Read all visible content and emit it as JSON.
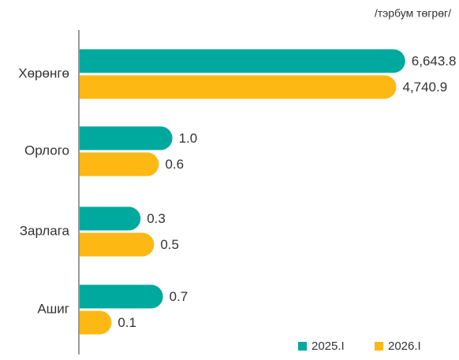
{
  "chart_data": {
    "type": "hbar",
    "unit_label": "/тэрбум төгрөг/",
    "categories": [
      "Хөрөнгө",
      "Орлого",
      "Зарлага",
      "Ашиг"
    ],
    "series": [
      {
        "name": "2025.I",
        "color": "#00a99d",
        "values": [
          6643.8,
          1.0,
          0.3,
          0.7
        ],
        "value_labels": [
          "6,643.8",
          "1.0",
          "0.3",
          "0.7"
        ]
      },
      {
        "name": "2026.I",
        "color": "#fdb813",
        "values": [
          4740.9,
          0.6,
          0.5,
          0.1
        ],
        "value_labels": [
          "4,740.9",
          "0.6",
          "0.5",
          "0.1"
        ]
      }
    ],
    "log_scale": true,
    "xlim": [
      0.03,
      8000
    ],
    "legend": "bottom-right"
  }
}
